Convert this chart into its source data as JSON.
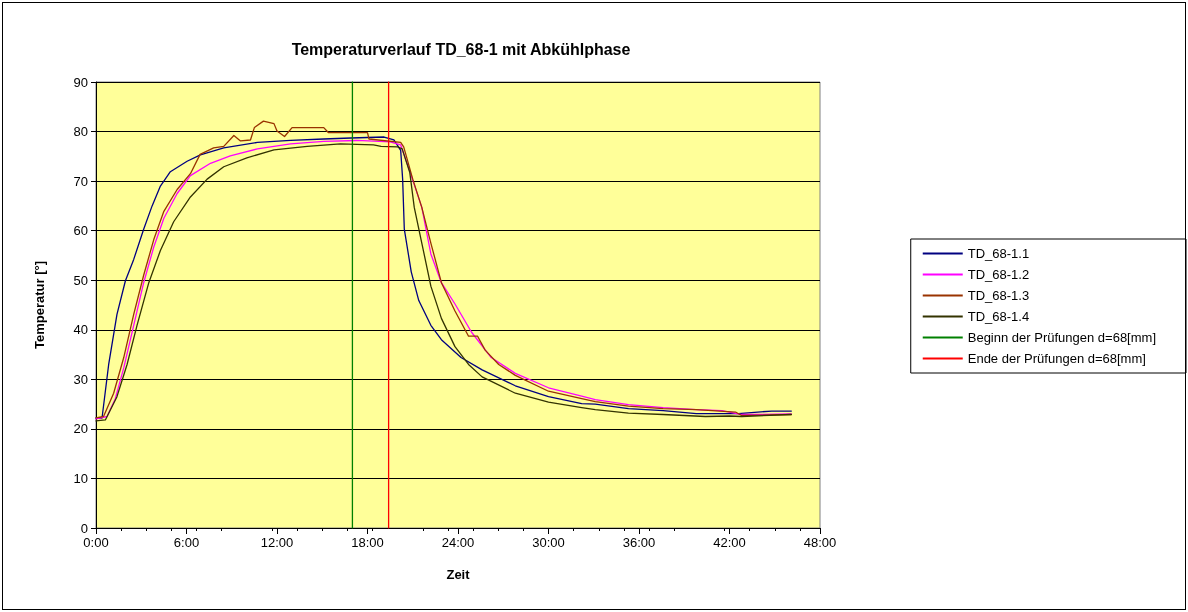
{
  "chart_data": {
    "type": "line",
    "title": "Temperaturverlauf TD_68-1 mit Abkühlphase",
    "xlabel": "Zeit",
    "ylabel": "Temperatur [°]",
    "xlim": [
      0,
      48
    ],
    "xticks": [
      {
        "value": 0,
        "label": "0:00"
      },
      {
        "value": 6,
        "label": "6:00"
      },
      {
        "value": 12,
        "label": "12:00"
      },
      {
        "value": 18,
        "label": "18:00"
      },
      {
        "value": 24,
        "label": "24:00"
      },
      {
        "value": 30,
        "label": "30:00"
      },
      {
        "value": 36,
        "label": "36:00"
      },
      {
        "value": 42,
        "label": "42:00"
      },
      {
        "value": 48,
        "label": "48:00"
      }
    ],
    "ylim": [
      0,
      90
    ],
    "yticks": [
      0,
      10,
      20,
      30,
      40,
      50,
      60,
      70,
      80,
      90
    ],
    "grid": "y",
    "legend": "right",
    "marker": "none",
    "line_style": "solid",
    "series": [
      {
        "name": "TD_68-1.1",
        "color": "#000080",
        "x": [
          0,
          0.4,
          0.84,
          1.39,
          1.95,
          2.5,
          3.16,
          3.72,
          4.27,
          4.93,
          6.04,
          6.92,
          8.47,
          10.7,
          12.9,
          15.1,
          16.9,
          19.1,
          19.75,
          20.2,
          20.33,
          20.44,
          20.9,
          21.4,
          22.2,
          22.9,
          24.2,
          25.6,
          27.8,
          30.0,
          32.2,
          33.1,
          35.3,
          37.6,
          39.8,
          41.3,
          42.6,
          44.8,
          46.1
        ],
        "values": [
          22.2,
          22.2,
          33.0,
          43.1,
          49.9,
          54.2,
          60.3,
          65.0,
          69.0,
          71.9,
          74.0,
          75.3,
          76.7,
          77.8,
          78.2,
          78.5,
          78.7,
          78.9,
          78.3,
          76.2,
          70.4,
          60.3,
          51.7,
          45.9,
          40.9,
          38.0,
          34.4,
          31.9,
          28.7,
          26.5,
          25.1,
          25.0,
          24.1,
          23.7,
          23.1,
          23.1,
          23.1,
          23.6,
          23.6
        ]
      },
      {
        "name": "TD_68-1.2",
        "color": "#ff00ff",
        "x": [
          0,
          0.73,
          1.28,
          1.84,
          2.5,
          3.16,
          3.83,
          4.5,
          5.38,
          6.26,
          7.59,
          8.9,
          10.7,
          12.9,
          15.1,
          17.3,
          19.5,
          20.2,
          20.9,
          21.6,
          22.2,
          22.9,
          23.8,
          24.9,
          26.2,
          27.8,
          30.0,
          32.2,
          33.1,
          35.3,
          37.6,
          39.8,
          41.5,
          42.8,
          46.1
        ],
        "values": [
          22.0,
          22.5,
          26.1,
          32.3,
          40.9,
          49.5,
          56.7,
          62.5,
          67.5,
          71.1,
          73.6,
          75.1,
          76.5,
          77.5,
          78.0,
          78.2,
          77.9,
          77.3,
          71.1,
          64.7,
          55.3,
          49.5,
          45.2,
          39.5,
          34.4,
          31.2,
          28.3,
          26.6,
          25.9,
          24.9,
          24.3,
          23.9,
          23.7,
          22.9,
          23.0
        ]
      },
      {
        "name": "TD_68-1.3",
        "color": "#993300",
        "x": [
          0,
          0.5,
          1.17,
          1.84,
          2.5,
          3.16,
          3.83,
          4.5,
          5.38,
          6.26,
          6.9,
          7.8,
          8.47,
          9.14,
          9.58,
          10.24,
          10.5,
          11.1,
          11.8,
          12.0,
          12.5,
          13.0,
          15.1,
          15.4,
          18.0,
          18.1,
          20.2,
          20.4,
          21.0,
          21.6,
          22.2,
          22.9,
          23.8,
          24.7,
          25.3,
          25.8,
          26.7,
          27.8,
          30.0,
          32.2,
          33.1,
          35.3,
          37.6,
          39.8,
          42.4,
          42.8,
          46.1
        ],
        "values": [
          22.2,
          22.5,
          27.2,
          34.4,
          43.1,
          51.0,
          58.2,
          63.9,
          68.3,
          71.5,
          75.4,
          76.7,
          77.0,
          79.2,
          78.1,
          78.3,
          80.8,
          82.1,
          81.6,
          80.1,
          79.0,
          80.8,
          80.8,
          79.8,
          79.8,
          78.5,
          77.8,
          76.9,
          70.4,
          64.7,
          57.5,
          49.5,
          43.8,
          38.7,
          38.7,
          35.9,
          33.0,
          30.8,
          27.6,
          26.1,
          25.5,
          24.6,
          24.1,
          23.9,
          23.4,
          22.7,
          22.9
        ]
      },
      {
        "name": "TD_68-1.4",
        "color": "#333300",
        "x": [
          0,
          0.62,
          1.39,
          2.06,
          2.72,
          3.5,
          4.27,
          5.15,
          6.26,
          7.37,
          8.47,
          10.0,
          11.8,
          14.0,
          16.2,
          18.4,
          18.9,
          20.0,
          20.3,
          20.8,
          21.1,
          21.6,
          22.2,
          22.9,
          23.8,
          24.7,
          25.6,
          27.8,
          30.0,
          32.2,
          33.1,
          35.3,
          37.6,
          40.4,
          42.0,
          42.8,
          46.1
        ],
        "values": [
          21.6,
          21.8,
          26.5,
          33.0,
          40.9,
          49.5,
          56.0,
          61.8,
          66.8,
          70.4,
          72.9,
          74.7,
          76.3,
          77.0,
          77.5,
          77.3,
          77.0,
          76.9,
          76.5,
          71.8,
          64.7,
          57.5,
          48.8,
          42.3,
          36.6,
          33.0,
          30.5,
          27.2,
          25.4,
          24.3,
          23.9,
          23.2,
          22.9,
          22.5,
          22.6,
          22.5,
          22.9
        ]
      },
      {
        "name": "Beginn der Prüfungen d=68[mm]",
        "color": "#008000",
        "x": [
          17,
          17
        ],
        "values": [
          0,
          90
        ]
      },
      {
        "name": "Ende der Prüfungen d=68[mm]",
        "color": "#ff0000",
        "x": [
          19.4,
          19.4
        ],
        "values": [
          0,
          90
        ]
      }
    ]
  }
}
